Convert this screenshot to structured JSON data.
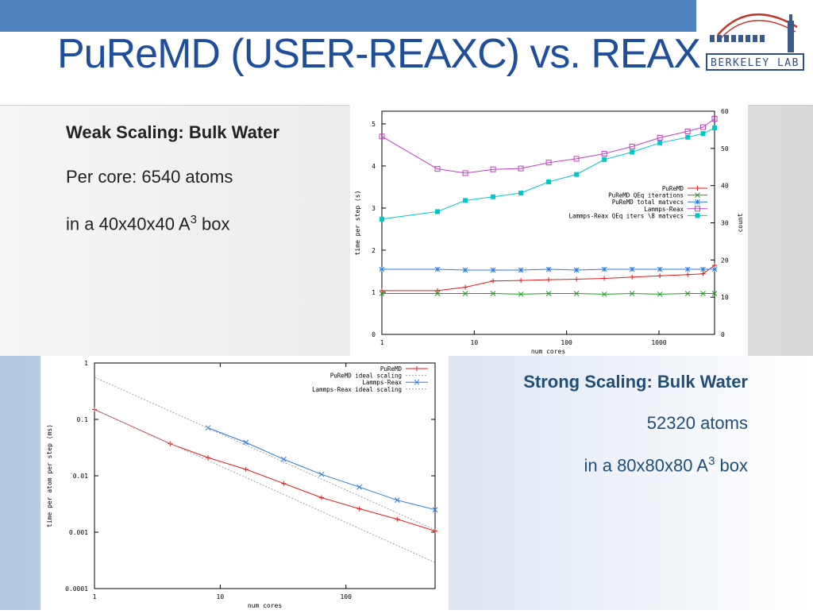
{
  "slide": {
    "title": "PuReMD (USER-REAXC) vs. REAX",
    "logo_text": "BERKELEY LAB",
    "weak": {
      "heading": "Weak Scaling: Bulk Water",
      "line1": "Per core: 6540 atoms",
      "line2_prefix": "in a 40x40x40 A",
      "line2_sup": "3",
      "line2_suffix": " box"
    },
    "strong": {
      "heading": "Strong Scaling: Bulk Water",
      "line1": "52320 atoms",
      "line2_prefix": "in a 80x80x80 A",
      "line2_sup": "3",
      "line2_suffix": " box"
    }
  },
  "colors": {
    "accent_bar": "#4f81bd",
    "title": "#1f4e9a",
    "series_red": "#e41a1c",
    "series_green": "#1fa01f",
    "series_blue": "#2a7ae2",
    "series_magenta": "#c040c0",
    "series_cyan": "#00c8c8",
    "ideal_gray": "#a0a0a0"
  },
  "chart_data": [
    {
      "type": "line",
      "xscale": "log",
      "xlabel": "num cores",
      "ylabel": "time per step (s)",
      "y2label": "count",
      "xlim": [
        1,
        4000
      ],
      "ylim": [
        0,
        5.3
      ],
      "y2lim": [
        0,
        60
      ],
      "xticks": [
        1,
        10,
        100,
        1000
      ],
      "yticks": [
        0,
        1,
        2,
        3,
        4,
        5
      ],
      "y2ticks": [
        0,
        10,
        20,
        30,
        40,
        50,
        60
      ],
      "legend_position": "right",
      "series": [
        {
          "name": "PuReMD",
          "axis": "y1",
          "color": "#e41a1c",
          "marker": "plus",
          "x": [
            1,
            4,
            8,
            16,
            32,
            64,
            128,
            256,
            512,
            1024,
            2048,
            3000,
            4000
          ],
          "y": [
            1.04,
            1.04,
            1.12,
            1.27,
            1.28,
            1.3,
            1.31,
            1.33,
            1.36,
            1.39,
            1.42,
            1.44,
            1.64
          ]
        },
        {
          "name": "PuReMD QEq iterations",
          "axis": "y2",
          "color": "#1fa01f",
          "marker": "cross",
          "x": [
            1,
            4,
            8,
            16,
            32,
            64,
            128,
            256,
            512,
            1024,
            2048,
            3000,
            4000
          ],
          "y": [
            11,
            11,
            11,
            11,
            10.8,
            11,
            11,
            10.8,
            11,
            10.8,
            11,
            11,
            11
          ]
        },
        {
          "name": "PuReMD total matvecs",
          "axis": "y2",
          "color": "#2a7ae2",
          "marker": "star",
          "x": [
            1,
            4,
            8,
            16,
            32,
            64,
            128,
            256,
            512,
            1024,
            2048,
            3000,
            4000
          ],
          "y": [
            17.5,
            17.5,
            17.3,
            17.3,
            17.3,
            17.5,
            17.3,
            17.5,
            17.5,
            17.5,
            17.5,
            17.5,
            17.5
          ]
        },
        {
          "name": "Lammps-Reax",
          "axis": "y1",
          "color": "#c040c0",
          "marker": "square-open",
          "x": [
            1,
            4,
            8,
            16,
            32,
            64,
            128,
            256,
            512,
            1024,
            2048,
            3000,
            4000
          ],
          "y": [
            4.7,
            3.93,
            3.83,
            3.92,
            3.94,
            4.08,
            4.17,
            4.29,
            4.46,
            4.67,
            4.82,
            4.92,
            5.12
          ]
        },
        {
          "name": "Lammps-Reax QEq iters \\8 matvecs",
          "axis": "y2",
          "color": "#00c8c8",
          "marker": "square-filled",
          "x": [
            1,
            4,
            8,
            16,
            32,
            64,
            128,
            256,
            512,
            1024,
            2048,
            3000,
            4000
          ],
          "y": [
            31,
            33,
            36,
            37,
            38,
            41,
            43,
            47,
            49,
            51.5,
            53,
            54,
            55.5
          ]
        }
      ]
    },
    {
      "type": "line",
      "xscale": "log",
      "yscale": "log",
      "xlabel": "num cores",
      "ylabel": "time per atom per step (ms)",
      "xlim": [
        1,
        512
      ],
      "ylim": [
        0.0001,
        1
      ],
      "xticks": [
        1,
        10,
        100
      ],
      "yticks": [
        0.0001,
        0.001,
        0.01,
        0.1,
        1
      ],
      "ytick_labels": [
        "0.0001",
        "0.001",
        "0.01",
        "0.1",
        "1"
      ],
      "legend_position": "top-right",
      "series": [
        {
          "name": "PuReMD",
          "color": "#e41a1c",
          "dash": "solid",
          "marker": "plus",
          "x": [
            1,
            4,
            8,
            16,
            32,
            64,
            128,
            256,
            512
          ],
          "y": [
            0.15,
            0.037,
            0.021,
            0.013,
            0.0073,
            0.0041,
            0.0026,
            0.0017,
            0.00105
          ]
        },
        {
          "name": "PuReMD ideal scaling",
          "color": "#a0a0a0",
          "dash": "dotted",
          "marker": "none",
          "x": [
            1,
            512
          ],
          "y": [
            0.15,
            0.00029
          ]
        },
        {
          "name": "Lammps-Reax",
          "color": "#2a7ae2",
          "dash": "solid",
          "marker": "cross",
          "x": [
            8,
            16,
            32,
            64,
            128,
            256,
            512
          ],
          "y": [
            0.071,
            0.039,
            0.0196,
            0.0106,
            0.0063,
            0.0037,
            0.0025
          ]
        },
        {
          "name": "Lammps-Reax ideal scaling",
          "color": "#a0a0a0",
          "dash": "dotted",
          "marker": "none",
          "x": [
            1,
            512
          ],
          "y": [
            0.56,
            0.0011
          ]
        }
      ]
    }
  ]
}
